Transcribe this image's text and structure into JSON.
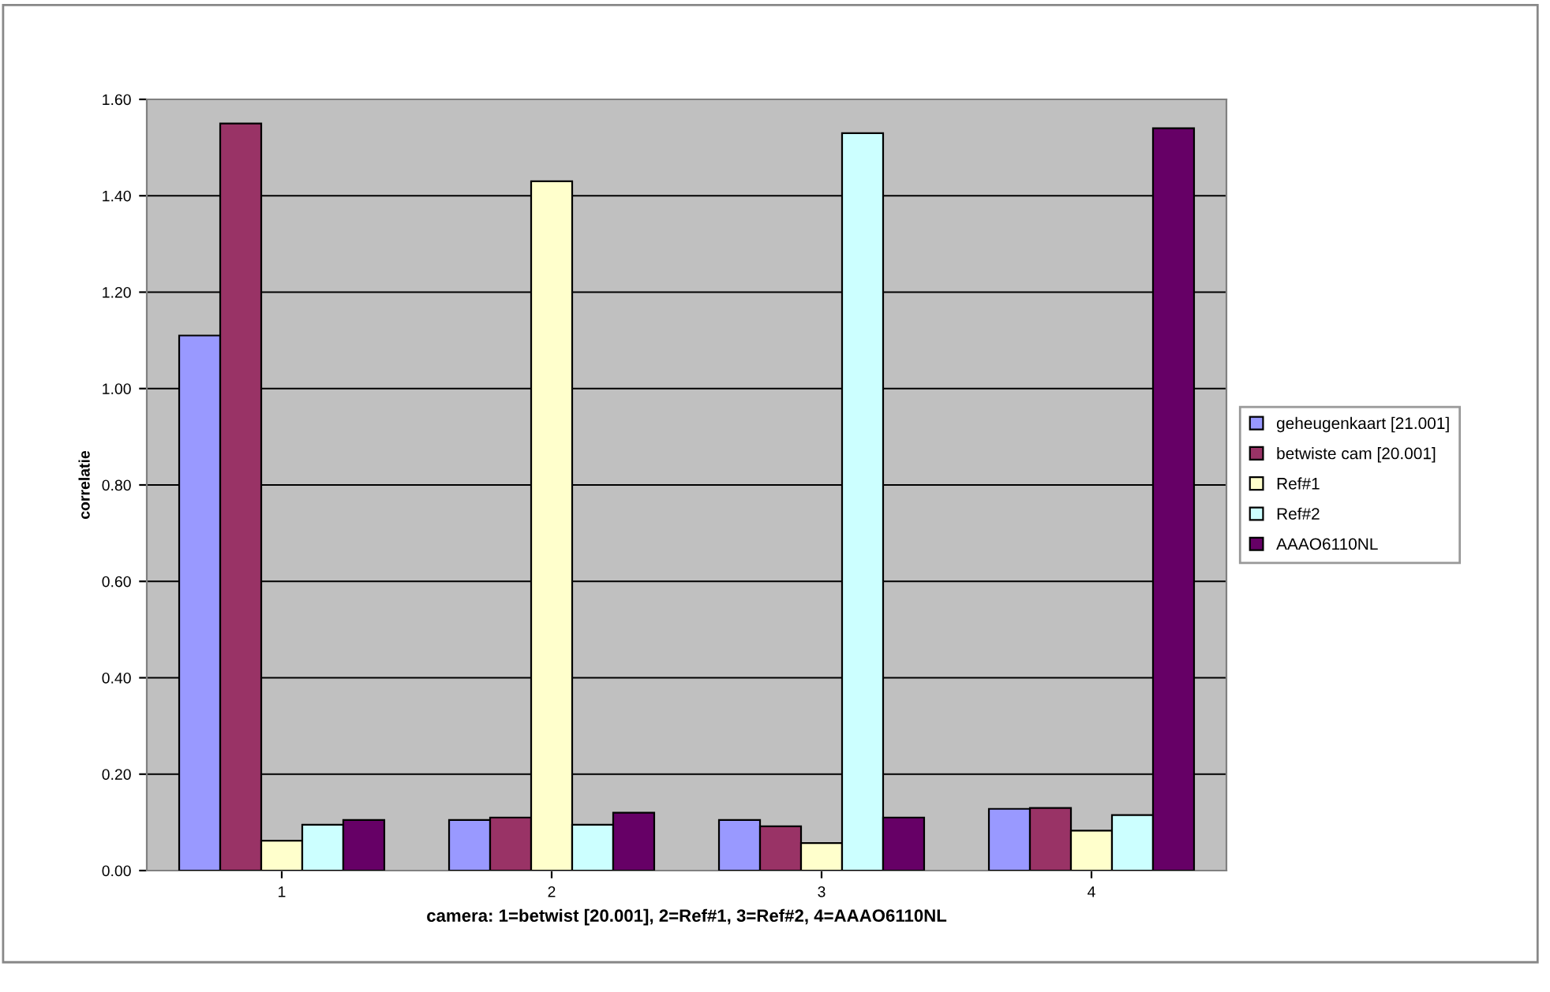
{
  "chart_data": {
    "type": "bar",
    "xlabel": "camera: 1=betwist [20.001], 2=Ref#1, 3=Ref#2, 4=AAAO6110NL",
    "ylabel": "correlatie",
    "categories": [
      "1",
      "2",
      "3",
      "4"
    ],
    "series": [
      {
        "name": "geheugenkaart [21.001]",
        "color": "#9999ff",
        "values": [
          1.11,
          0.105,
          0.105,
          0.128
        ]
      },
      {
        "name": "betwiste cam [20.001]",
        "color": "#993366",
        "values": [
          1.55,
          0.11,
          0.092,
          0.13
        ]
      },
      {
        "name": "Ref#1",
        "color": "#ffffcc",
        "values": [
          0.062,
          1.43,
          0.057,
          0.083
        ]
      },
      {
        "name": "Ref#2",
        "color": "#ccffff",
        "values": [
          0.095,
          0.095,
          1.53,
          0.115
        ]
      },
      {
        "name": "AAAO6110NL",
        "color": "#660066",
        "values": [
          0.105,
          0.12,
          0.11,
          1.54
        ]
      }
    ],
    "ylim": [
      0,
      1.6
    ],
    "yticks": [
      {
        "value": 0,
        "label": "0.00"
      },
      {
        "value": 0.2,
        "label": "0.20"
      },
      {
        "value": 0.4,
        "label": "0.40"
      },
      {
        "value": 0.6,
        "label": "0.60"
      },
      {
        "value": 0.8,
        "label": "0.80"
      },
      {
        "value": 1.0,
        "label": "1.00"
      },
      {
        "value": 1.2,
        "label": "1.20"
      },
      {
        "value": 1.4,
        "label": "1.40"
      },
      {
        "value": 1.6,
        "label": "1.60"
      }
    ],
    "grid": "y",
    "legend": "right"
  }
}
